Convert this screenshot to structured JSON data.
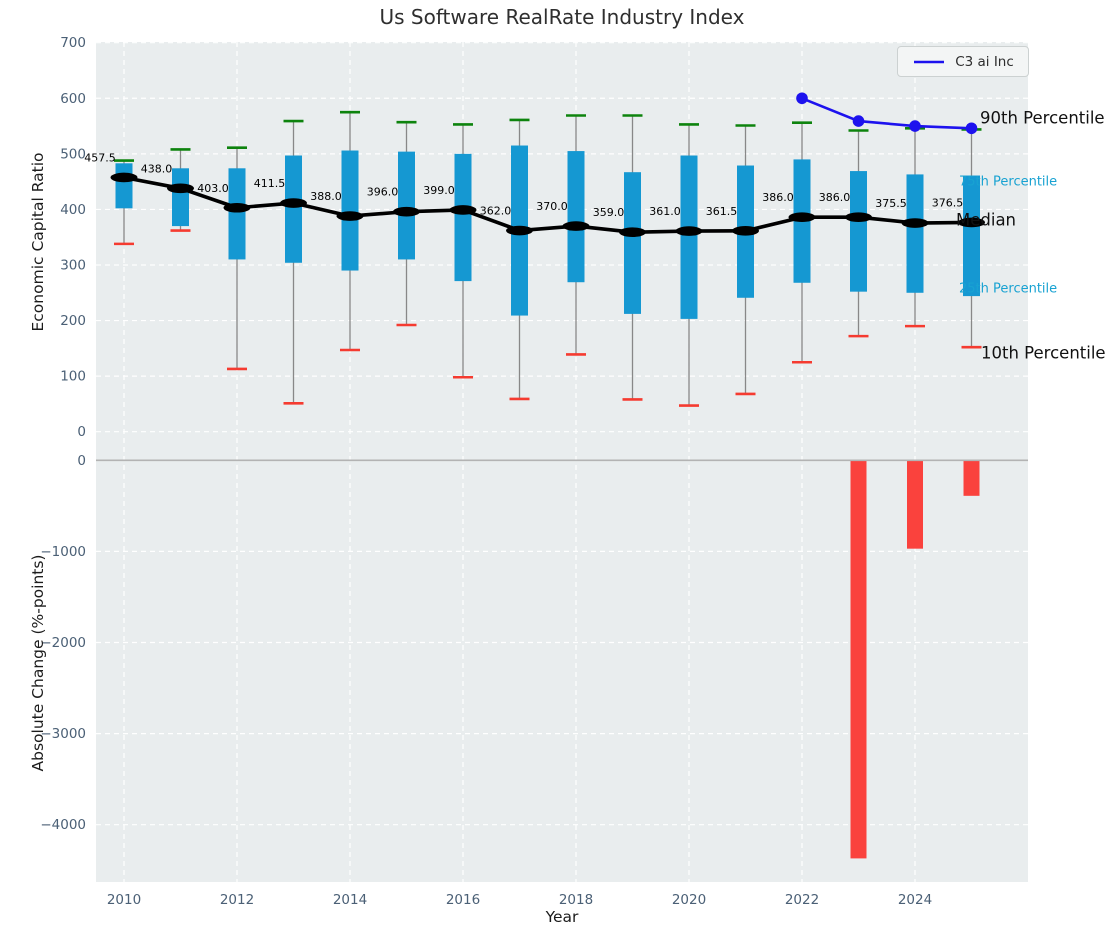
{
  "figure": {
    "title": "Us Software RealRate Industry Index",
    "legend": {
      "label": "C3 ai Inc"
    },
    "right_labels": {
      "p90": "90th Percentile",
      "p75": "75th Percentile",
      "median": "Median",
      "p25": "25th Percentile",
      "p10": "10th Percentile"
    },
    "colors": {
      "plot_bg": "#e9edee",
      "grid": "#ffffff",
      "box_fill": "#1598d2",
      "whisker": "#888888",
      "p90_cap": "#0d830d",
      "p10_cap": "#f53b30",
      "median_line": "#000000",
      "company_line": "#1d12ee",
      "bar_negative": "#fa423d",
      "zero_line": "#b3b3b3",
      "tick_text": "#4b6076",
      "percentile_label_accent": "#18a2d2"
    }
  },
  "chart_data": [
    {
      "type": "box",
      "title": "Us Software RealRate Industry Index",
      "ylabel": "Economic Capital Ratio",
      "ylim": [
        -22,
        701
      ],
      "yticks": [
        0,
        100,
        200,
        300,
        400,
        500,
        600,
        700
      ],
      "grid": "white dashed, on",
      "legend_position": "upper right",
      "categories": [
        2010,
        2011,
        2012,
        2013,
        2014,
        2015,
        2016,
        2017,
        2018,
        2019,
        2020,
        2021,
        2022,
        2023,
        2024,
        2025
      ],
      "series": [
        {
          "name": "90th Percentile",
          "values": [
            488,
            508,
            511,
            559,
            575,
            557,
            553,
            561,
            569,
            569,
            553,
            551,
            556,
            542,
            546,
            544
          ]
        },
        {
          "name": "75th Percentile",
          "values": [
            483,
            474,
            474,
            497,
            506,
            504,
            500,
            515,
            505,
            467,
            497,
            479,
            490,
            469,
            463,
            461
          ]
        },
        {
          "name": "Median",
          "values": [
            457.5,
            438.0,
            403.0,
            411.5,
            388.0,
            396.0,
            399.0,
            362.0,
            370.0,
            359.0,
            361.0,
            361.5,
            386.0,
            386.0,
            375.5,
            376.5
          ]
        },
        {
          "name": "25th Percentile",
          "values": [
            402,
            370,
            310,
            304,
            290,
            310,
            271,
            209,
            269,
            212,
            203,
            241,
            268,
            252,
            250,
            244
          ]
        },
        {
          "name": "10th Percentile",
          "values": [
            338,
            362,
            113,
            51,
            147,
            192,
            98,
            59,
            139,
            58,
            47,
            68,
            125,
            172,
            190,
            152
          ]
        }
      ],
      "company_series": {
        "name": "C3 ai Inc",
        "x": [
          2022,
          2023,
          2024,
          2025
        ],
        "values": [
          600,
          559,
          550,
          546
        ]
      }
    },
    {
      "type": "bar",
      "ylabel": "Absolute Change (%-points)",
      "xlabel": "Year",
      "ylim": [
        -4630,
        180
      ],
      "yticks": [
        0,
        -1000,
        -2000,
        -3000,
        -4000
      ],
      "xticks": [
        2010,
        2012,
        2014,
        2016,
        2018,
        2020,
        2022,
        2024
      ],
      "grid": "white dashed, on",
      "x": [
        2023,
        2024,
        2025
      ],
      "values": [
        -4370,
        -970,
        -390
      ]
    }
  ]
}
